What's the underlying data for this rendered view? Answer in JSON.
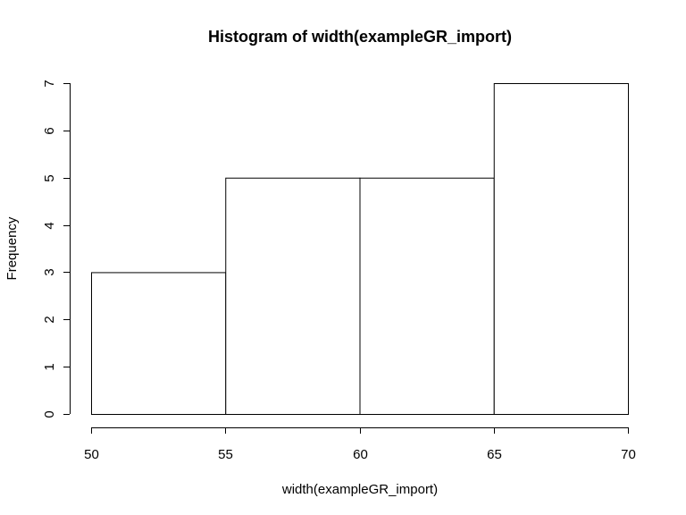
{
  "chart_data": {
    "type": "bar",
    "title": "Histogram of width(exampleGR_import)",
    "xlabel": "width(exampleGR_import)",
    "ylabel": "Frequency",
    "bins": [
      {
        "start": 50,
        "end": 55,
        "count": 3
      },
      {
        "start": 55,
        "end": 60,
        "count": 5
      },
      {
        "start": 60,
        "end": 65,
        "count": 5
      },
      {
        "start": 65,
        "end": 70,
        "count": 7
      }
    ],
    "xlim": [
      50,
      70
    ],
    "ylim": [
      0,
      7
    ],
    "xticks": [
      50,
      55,
      60,
      65,
      70
    ],
    "yticks": [
      0,
      1,
      2,
      3,
      4,
      5,
      6,
      7
    ],
    "grid": false,
    "colors": {
      "bar_fill": "#ffffff",
      "bar_stroke": "#000000"
    }
  }
}
